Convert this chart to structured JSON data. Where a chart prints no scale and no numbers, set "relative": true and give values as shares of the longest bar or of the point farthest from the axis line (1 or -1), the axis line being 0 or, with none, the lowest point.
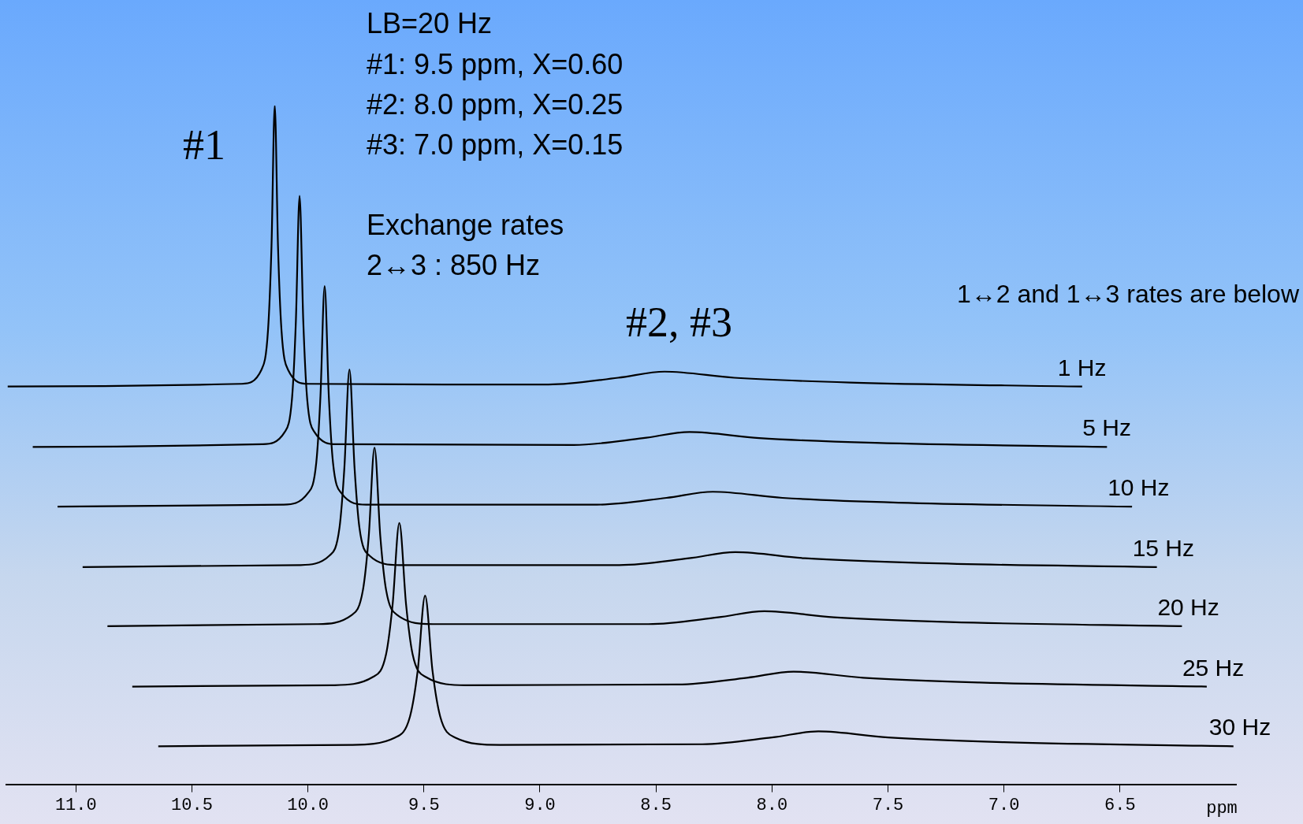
{
  "chart_data": {
    "type": "line",
    "relative": true,
    "xlabel": "ppm",
    "xlim": [
      11.3,
      6.0
    ],
    "xticks": [
      {
        "value": 11,
        "label": "11.0"
      },
      {
        "value": 10.5,
        "label": "10.5"
      },
      {
        "value": 10,
        "label": "10.0"
      },
      {
        "value": 9.5,
        "label": "9.5"
      },
      {
        "value": 9,
        "label": "9.0"
      },
      {
        "value": 8.5,
        "label": "8.5"
      },
      {
        "value": 8,
        "label": "8.0"
      },
      {
        "value": 7.5,
        "label": "7.5"
      },
      {
        "value": 7,
        "label": "7.0"
      },
      {
        "value": 6.5,
        "label": "6.5"
      }
    ],
    "grid": false,
    "legend": false,
    "marker": "none",
    "line_style": "solid",
    "annotations": [
      "LB=20 Hz",
      "#1: 9.5 ppm, X=0.60",
      "#2: 8.0 ppm, X=0.25",
      "#3: 7.0 ppm, X=0.15",
      "Exchange rates",
      "2↔3 : 850 Hz",
      "1↔2 and 1↔3 rates are below",
      "#1",
      "#2, #3"
    ],
    "series": [
      {
        "name": "1 Hz",
        "color": "#000000",
        "x": [
          11.294,
          10.286,
          10.2,
          10.172,
          10.157,
          10.143,
          10.129,
          10.114,
          10.086,
          10.0,
          8.963,
          8.663,
          8.463,
          8.163,
          7.663,
          6.663
        ],
        "values": [
          0.586,
          0.59,
          0.611,
          0.669,
          0.793,
          1.0,
          0.793,
          0.669,
          0.611,
          0.59,
          0.589,
          0.599,
          0.608,
          0.599,
          0.592,
          0.586
        ]
      },
      {
        "name": "5 Hz",
        "color": "#000000",
        "x": [
          11.186,
          10.197,
          10.1,
          10.068,
          10.052,
          10.036,
          10.02,
          10.004,
          9.972,
          9.875,
          8.855,
          8.555,
          8.355,
          8.055,
          7.555,
          6.556
        ],
        "values": [
          0.497,
          0.501,
          0.519,
          0.571,
          0.682,
          0.867,
          0.682,
          0.571,
          0.519,
          0.501,
          0.5,
          0.51,
          0.519,
          0.51,
          0.503,
          0.497
        ]
      },
      {
        "name": "10 Hz",
        "color": "#000000",
        "x": [
          11.079,
          10.107,
          10.0,
          9.964,
          9.946,
          9.928,
          9.91,
          9.892,
          9.856,
          9.749,
          8.755,
          8.455,
          8.255,
          7.955,
          7.455,
          6.448
        ],
        "values": [
          0.409,
          0.412,
          0.429,
          0.474,
          0.572,
          0.734,
          0.572,
          0.474,
          0.429,
          0.412,
          0.412,
          0.422,
          0.431,
          0.422,
          0.415,
          0.409
        ]
      },
      {
        "name": "15 Hz",
        "color": "#000000",
        "x": [
          10.971,
          10.036,
          9.907,
          9.864,
          9.843,
          9.821,
          9.799,
          9.778,
          9.735,
          9.606,
          8.658,
          8.358,
          8.158,
          7.858,
          7.358,
          6.341
        ],
        "values": [
          0.32,
          0.323,
          0.337,
          0.378,
          0.466,
          0.611,
          0.466,
          0.378,
          0.337,
          0.323,
          0.323,
          0.333,
          0.342,
          0.333,
          0.326,
          0.32
        ]
      },
      {
        "name": "20 Hz",
        "color": "#000000",
        "x": [
          10.864,
          9.964,
          9.813,
          9.763,
          9.738,
          9.713,
          9.688,
          9.663,
          9.613,
          9.462,
          8.533,
          8.233,
          8.033,
          7.733,
          7.233,
          6.233
        ],
        "values": [
          0.233,
          0.236,
          0.249,
          0.286,
          0.365,
          0.496,
          0.365,
          0.286,
          0.249,
          0.236,
          0.236,
          0.246,
          0.255,
          0.246,
          0.239,
          0.233
        ]
      },
      {
        "name": "25 Hz",
        "color": "#000000",
        "x": [
          10.757,
          9.893,
          9.721,
          9.663,
          9.635,
          9.606,
          9.577,
          9.549,
          9.491,
          9.319,
          8.407,
          8.107,
          7.907,
          7.607,
          7.107,
          6.126
        ],
        "values": [
          0.144,
          0.146,
          0.158,
          0.192,
          0.265,
          0.385,
          0.265,
          0.192,
          0.158,
          0.146,
          0.147,
          0.157,
          0.166,
          0.157,
          0.15,
          0.144
        ]
      },
      {
        "name": "30 Hz",
        "color": "#000000",
        "x": [
          10.645,
          9.818,
          9.624,
          9.56,
          9.527,
          9.495,
          9.463,
          9.43,
          9.366,
          9.172,
          8.3,
          8.0,
          7.8,
          7.5,
          7.0,
          6.011
        ],
        "values": [
          0.056,
          0.058,
          0.069,
          0.1,
          0.167,
          0.278,
          0.167,
          0.1,
          0.069,
          0.058,
          0.059,
          0.069,
          0.078,
          0.069,
          0.062,
          0.056
        ]
      }
    ]
  }
}
